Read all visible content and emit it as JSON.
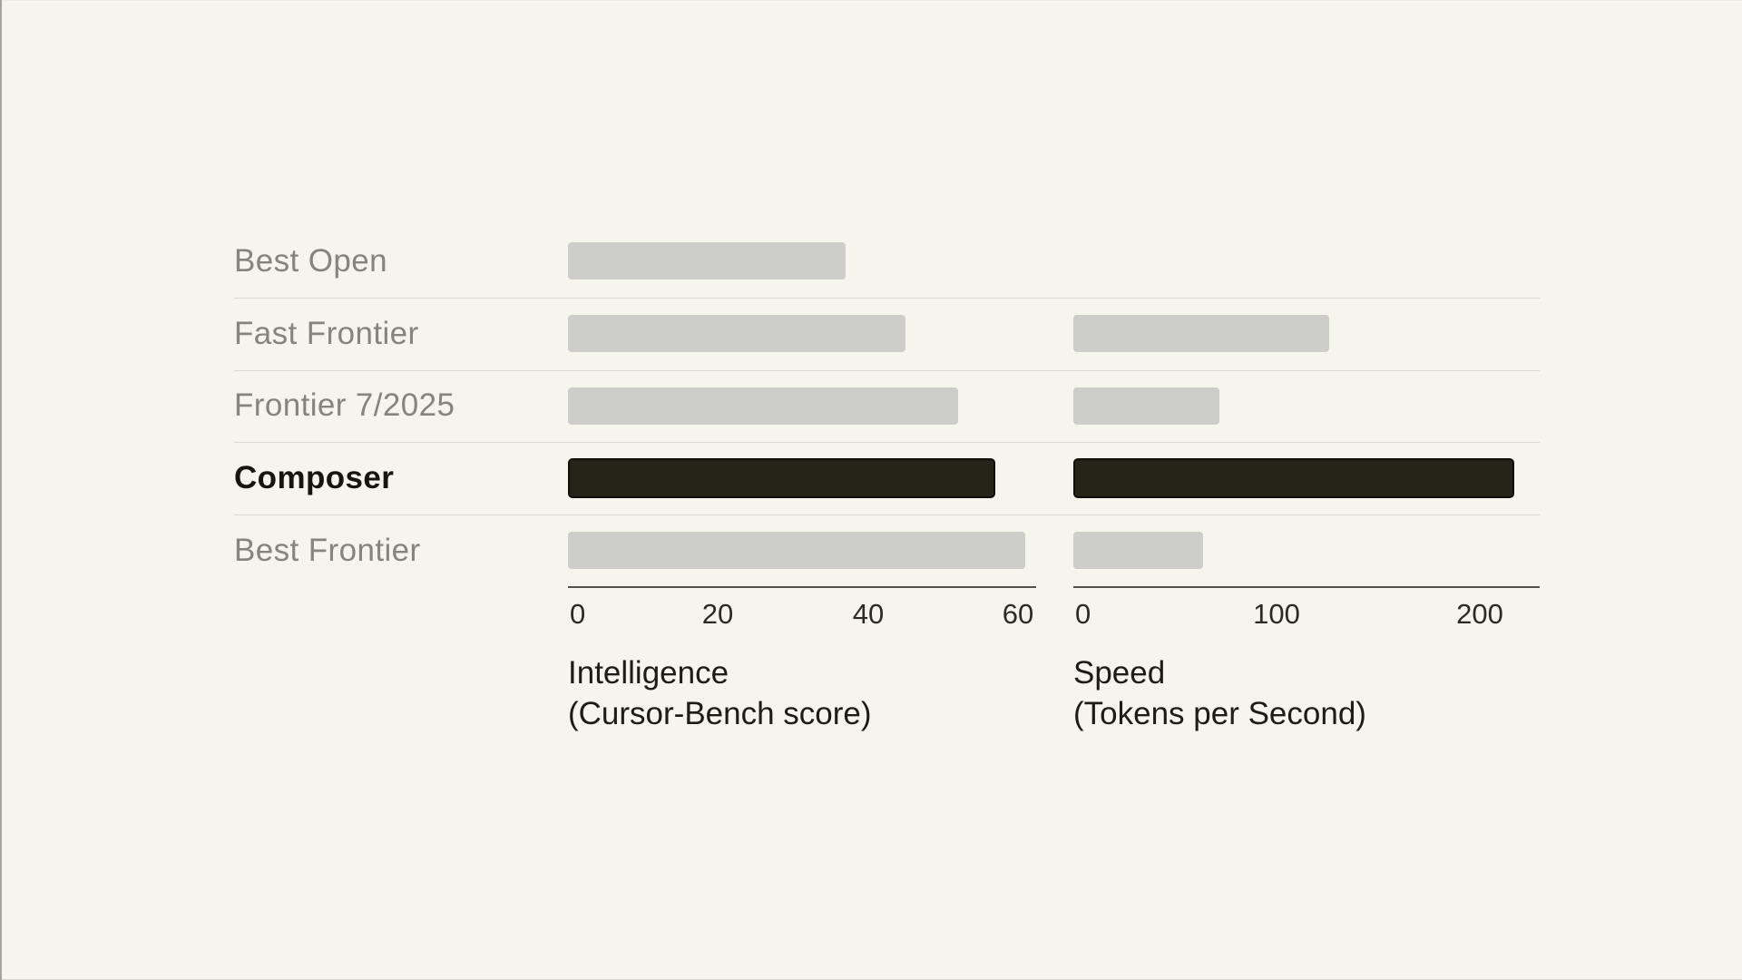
{
  "page": {
    "description": "Benchmark comparison chart of Composer against frontier models",
    "colors": {
      "background": "#f5f5ee",
      "bar": "#cdcdc9",
      "bar_highlight": "#262319",
      "bar_highlight_border": "#0e0e0a",
      "label_gray": "#85857d",
      "label_highlight": "#16160f",
      "separator": "#dcdbd2",
      "axis_line": "#52514a",
      "tick_text": "#2b2b24",
      "title_text": "#1d1d16",
      "edge_left": "#a5a59d",
      "edge_top": "#ecebdf",
      "edge_bottom": "#d9d8d0"
    }
  },
  "chart_data": {
    "type": "bar",
    "orientation": "horizontal",
    "grid": false,
    "legend": false,
    "categories": [
      "Best Open",
      "Fast Frontier",
      "Frontier 7/2025",
      "Composer",
      "Best Frontier"
    ],
    "highlight_category": "Composer",
    "panels": [
      {
        "name": "intelligence",
        "xlabel_line1": "Intelligence",
        "xlabel_line2": "(Cursor-Bench score)",
        "ticks": [
          0,
          20,
          40,
          60
        ],
        "xlim": [
          0,
          62.4
        ],
        "values": [
          37,
          45,
          52,
          57,
          61
        ]
      },
      {
        "name": "speed",
        "xlabel_line1": "Speed",
        "xlabel_line2": "(Tokens per Second)",
        "ticks": [
          0,
          100,
          200
        ],
        "xlim": [
          0,
          229.5
        ],
        "values": [
          null,
          126,
          72,
          217,
          64
        ]
      }
    ]
  }
}
